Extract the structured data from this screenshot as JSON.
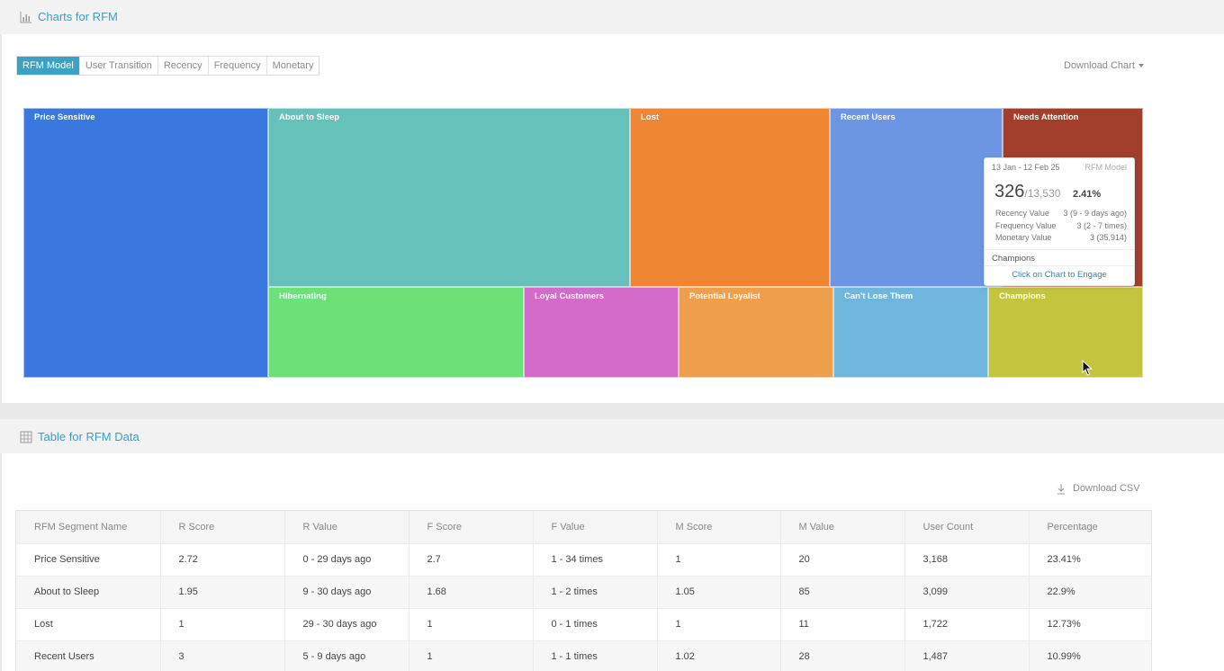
{
  "charts_panel": {
    "title": "Charts for RFM",
    "icon": "bar-chart-icon"
  },
  "tabs": [
    "RFM Model",
    "User Transition",
    "Recency",
    "Frequency",
    "Monetary"
  ],
  "download_chart": "Download Chart",
  "treemap": {
    "cells": [
      {
        "name": "Price Sensitive",
        "users": 3168,
        "color": "#3a77de"
      },
      {
        "name": "About to Sleep",
        "users": 3099,
        "color": "#67c1bb"
      },
      {
        "name": "Lost",
        "users": 1722,
        "color": "#ee8634"
      },
      {
        "name": "Recent Users",
        "users": 1487,
        "color": "#6c96e4"
      },
      {
        "name": "Needs Attention",
        "color": "#a23f2c"
      },
      {
        "name": "Hibernating",
        "color": "#6be178"
      },
      {
        "name": "Loyal Customers",
        "color": "#d46ac9"
      },
      {
        "name": "Potential Loyalist",
        "color": "#ef9f4c"
      },
      {
        "name": "Can't Lose Them",
        "color": "#6eb6dc"
      },
      {
        "name": "Champions",
        "color": "#c4c43e"
      }
    ]
  },
  "tooltip": {
    "date_range": "13 Jan - 12 Feb 25",
    "model": "RFM Model",
    "count": "326",
    "total": "/13,530",
    "percent": "2.41%",
    "rows": [
      {
        "label": "Recency Value",
        "value": "3 (9 - 9 days ago)"
      },
      {
        "label": "Frequency Value",
        "value": "3 (2 - 7 times)"
      },
      {
        "label": "Monetary Value",
        "value": "3 (35,914)"
      }
    ],
    "segment": "Champions",
    "engage": "Click on Chart to Engage"
  },
  "table_panel": {
    "title": "Table for RFM Data",
    "icon": "table-icon"
  },
  "download_csv": "Download CSV",
  "table": {
    "headers": [
      "RFM Segment Name",
      "R Score",
      "R Value",
      "F Score",
      "F Value",
      "M Score",
      "M Value",
      "User Count",
      "Percentage"
    ],
    "rows": [
      [
        "Price Sensitive",
        "2.72",
        "0 - 29 days ago",
        "2.7",
        "1 - 34 times",
        "1",
        "20",
        "3,168",
        "23.41%"
      ],
      [
        "About to Sleep",
        "1.95",
        "9 - 30 days ago",
        "1.68",
        "1 - 2 times",
        "1.05",
        "85",
        "3,099",
        "22.9%"
      ],
      [
        "Lost",
        "1",
        "29 - 30 days ago",
        "1",
        "0 - 1 times",
        "1",
        "11",
        "1,722",
        "12.73%"
      ],
      [
        "Recent Users",
        "3",
        "5 - 9 days ago",
        "1",
        "1 - 1 times",
        "1.02",
        "28",
        "1,487",
        "10.99%"
      ]
    ]
  }
}
